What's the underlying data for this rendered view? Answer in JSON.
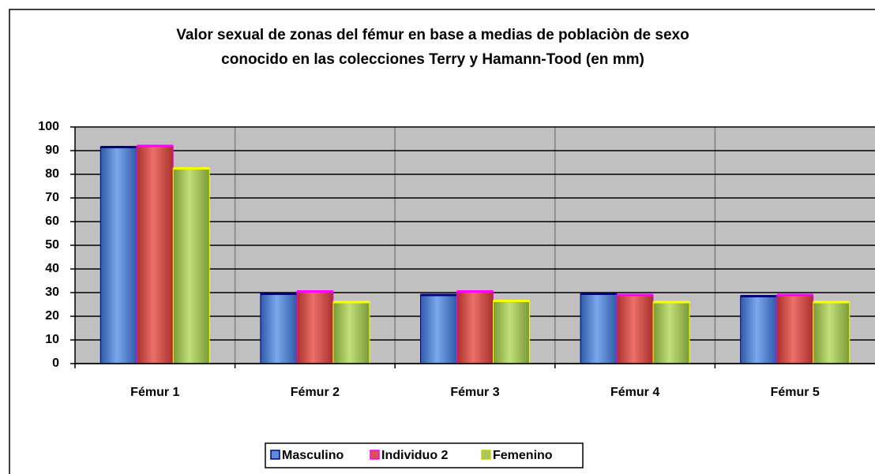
{
  "chart_data": {
    "type": "bar",
    "title": [
      "Valor sexual de zonas del fémur en base a medias de poblaciòn de sexo",
      "conocido en las colecciones Terry y Hamann-Tood (en mm)"
    ],
    "categories": [
      "Fémur 1",
      "Fémur 2",
      "Fémur 3",
      "Fémur 4",
      "Fémur 5"
    ],
    "series": [
      {
        "name": "Masculino",
        "color": "#5b8ed6",
        "values": [
          91.5,
          29.5,
          29,
          29.5,
          28.5
        ]
      },
      {
        "name": "Individuo 2",
        "color": "#d9534f",
        "values": [
          92,
          30.5,
          30.5,
          29,
          29
        ]
      },
      {
        "name": "Femenino",
        "color": "#a6c85c",
        "values": [
          82.5,
          26,
          26.5,
          26,
          26
        ]
      }
    ],
    "ylim": [
      0,
      100
    ],
    "yticks": [
      0,
      10,
      20,
      30,
      40,
      50,
      60,
      70,
      80,
      90,
      100
    ],
    "grid": true,
    "legend": "bottom"
  }
}
